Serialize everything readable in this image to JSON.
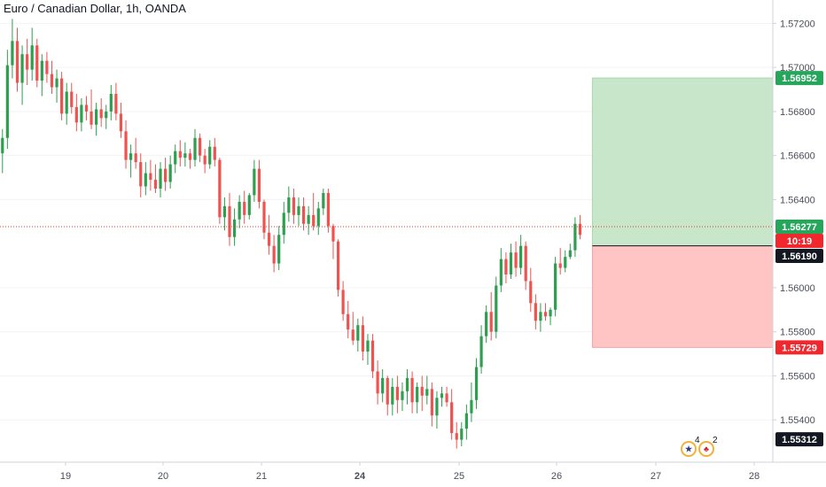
{
  "title": "Euro / Canadian Dollar, 1h, OANDA",
  "colors": {
    "up": "#26a69a",
    "up_body": "#2e9e4f",
    "down": "#ef5350",
    "target_zone": "#c8e6c9",
    "stop_zone": "#ffc4c4",
    "target_badge": "#26a65b",
    "stop_badge": "#f0282d",
    "current_badge": "#26a65b",
    "timer_badge": "#f0282d",
    "entry_badge": "#131722",
    "low_badge": "#131722",
    "price_line": "#e53935"
  },
  "price_axis": {
    "ticks": [
      "1.57200",
      "1.57000",
      "1.56800",
      "1.56600",
      "1.56400",
      "1.56000",
      "1.55800",
      "1.55600",
      "1.55400"
    ]
  },
  "badges": {
    "target": "1.56952",
    "current": "1.56277",
    "timer": "10:19",
    "entry": "1.56190",
    "stop": "1.55729",
    "low": "1.55312"
  },
  "events": {
    "us_count": "4",
    "ca_count": "2",
    "us_icon": "us-flag-icon",
    "ca_icon": "canada-flag-icon"
  },
  "chart_data": {
    "type": "candlestick",
    "title": "Euro / Canadian Dollar, 1h, OANDA",
    "x_axis_labels": [
      "19",
      "20",
      "21",
      "24",
      "25",
      "26",
      "27",
      "28"
    ],
    "y_range": [
      1.5524,
      1.5729
    ],
    "position": {
      "type": "long",
      "entry": 1.5619,
      "target": 1.56952,
      "stop": 1.55729,
      "start_bar": 120,
      "end_bar": 161
    },
    "current_price": 1.56277,
    "ohlc": [
      [
        1.5661,
        1.5672,
        1.5652,
        1.5668
      ],
      [
        1.5668,
        1.5708,
        1.5663,
        1.5701
      ],
      [
        1.5701,
        1.5722,
        1.5695,
        1.5712
      ],
      [
        1.5712,
        1.5718,
        1.5689,
        1.5693
      ],
      [
        1.5693,
        1.571,
        1.5683,
        1.5706
      ],
      [
        1.5706,
        1.5713,
        1.5692,
        1.5699
      ],
      [
        1.5699,
        1.5718,
        1.5694,
        1.571
      ],
      [
        1.571,
        1.5713,
        1.5691,
        1.5694
      ],
      [
        1.5694,
        1.5706,
        1.5687,
        1.5703
      ],
      [
        1.5703,
        1.5707,
        1.5693,
        1.5697
      ],
      [
        1.5697,
        1.5703,
        1.5688,
        1.5691
      ],
      [
        1.5691,
        1.5699,
        1.5684,
        1.5695
      ],
      [
        1.5695,
        1.5698,
        1.5676,
        1.5679
      ],
      [
        1.5679,
        1.5693,
        1.5674,
        1.5689
      ],
      [
        1.5689,
        1.5693,
        1.5679,
        1.5682
      ],
      [
        1.5682,
        1.5688,
        1.5671,
        1.5675
      ],
      [
        1.5675,
        1.5686,
        1.5671,
        1.5683
      ],
      [
        1.5683,
        1.5687,
        1.5676,
        1.568
      ],
      [
        1.568,
        1.569,
        1.5672,
        1.5674
      ],
      [
        1.5674,
        1.5684,
        1.5669,
        1.5681
      ],
      [
        1.5681,
        1.5686,
        1.5673,
        1.5677
      ],
      [
        1.5677,
        1.5683,
        1.5672,
        1.568
      ],
      [
        1.568,
        1.5692,
        1.5676,
        1.5688
      ],
      [
        1.5688,
        1.5693,
        1.5676,
        1.5679
      ],
      [
        1.5679,
        1.5684,
        1.5668,
        1.5671
      ],
      [
        1.5671,
        1.5676,
        1.5654,
        1.5658
      ],
      [
        1.5658,
        1.5665,
        1.565,
        1.5661
      ],
      [
        1.5661,
        1.5668,
        1.5654,
        1.5657
      ],
      [
        1.5657,
        1.5661,
        1.5641,
        1.5646
      ],
      [
        1.5646,
        1.5657,
        1.5642,
        1.5652
      ],
      [
        1.5652,
        1.5658,
        1.5644,
        1.5649
      ],
      [
        1.5649,
        1.5656,
        1.5643,
        1.5645
      ],
      [
        1.5645,
        1.5657,
        1.5641,
        1.5654
      ],
      [
        1.5654,
        1.5659,
        1.5644,
        1.5648
      ],
      [
        1.5648,
        1.566,
        1.5645,
        1.5656
      ],
      [
        1.5656,
        1.5665,
        1.5652,
        1.5662
      ],
      [
        1.5662,
        1.5667,
        1.5655,
        1.5659
      ],
      [
        1.5659,
        1.5666,
        1.5655,
        1.5661
      ],
      [
        1.5661,
        1.5663,
        1.5654,
        1.5658
      ],
      [
        1.5658,
        1.5672,
        1.5655,
        1.5668
      ],
      [
        1.5668,
        1.567,
        1.5657,
        1.566
      ],
      [
        1.566,
        1.5663,
        1.5652,
        1.5656
      ],
      [
        1.5656,
        1.5667,
        1.5654,
        1.5664
      ],
      [
        1.5664,
        1.5668,
        1.5655,
        1.5658
      ],
      [
        1.5658,
        1.5659,
        1.5629,
        1.5632
      ],
      [
        1.5632,
        1.5641,
        1.5626,
        1.5637
      ],
      [
        1.5637,
        1.5643,
        1.5619,
        1.5623
      ],
      [
        1.5623,
        1.5636,
        1.5619,
        1.5631
      ],
      [
        1.5631,
        1.5642,
        1.5627,
        1.5639
      ],
      [
        1.5639,
        1.5644,
        1.5629,
        1.5633
      ],
      [
        1.5633,
        1.5643,
        1.5631,
        1.5642
      ],
      [
        1.5642,
        1.5658,
        1.5639,
        1.5654
      ],
      [
        1.5654,
        1.5658,
        1.5636,
        1.5639
      ],
      [
        1.5639,
        1.564,
        1.5622,
        1.5625
      ],
      [
        1.5625,
        1.5633,
        1.5615,
        1.5619
      ],
      [
        1.5619,
        1.5624,
        1.5607,
        1.5611
      ],
      [
        1.5611,
        1.5628,
        1.5608,
        1.5624
      ],
      [
        1.5624,
        1.5639,
        1.562,
        1.5634
      ],
      [
        1.5634,
        1.5646,
        1.563,
        1.5641
      ],
      [
        1.5641,
        1.5645,
        1.5629,
        1.5633
      ],
      [
        1.5633,
        1.5641,
        1.5628,
        1.5637
      ],
      [
        1.5637,
        1.5641,
        1.5626,
        1.5629
      ],
      [
        1.5629,
        1.5637,
        1.5624,
        1.5633
      ],
      [
        1.5633,
        1.5643,
        1.5626,
        1.5628
      ],
      [
        1.5628,
        1.5639,
        1.5624,
        1.5636
      ],
      [
        1.5636,
        1.5645,
        1.5633,
        1.5643
      ],
      [
        1.5643,
        1.5645,
        1.5625,
        1.5628
      ],
      [
        1.5628,
        1.5629,
        1.5613,
        1.5621
      ],
      [
        1.5621,
        1.5622,
        1.5596,
        1.5599
      ],
      [
        1.5599,
        1.5603,
        1.5585,
        1.5588
      ],
      [
        1.5588,
        1.5594,
        1.5577,
        1.5581
      ],
      [
        1.5581,
        1.5589,
        1.5574,
        1.5576
      ],
      [
        1.5576,
        1.5586,
        1.5571,
        1.5583
      ],
      [
        1.5583,
        1.5587,
        1.5567,
        1.5571
      ],
      [
        1.5571,
        1.5579,
        1.5565,
        1.5576
      ],
      [
        1.5576,
        1.5579,
        1.5559,
        1.5562
      ],
      [
        1.5562,
        1.5567,
        1.5547,
        1.5552
      ],
      [
        1.5552,
        1.5563,
        1.5548,
        1.5559
      ],
      [
        1.5559,
        1.556,
        1.5542,
        1.5547
      ],
      [
        1.5547,
        1.5559,
        1.5542,
        1.5555
      ],
      [
        1.5555,
        1.556,
        1.5543,
        1.5549
      ],
      [
        1.5549,
        1.5557,
        1.5544,
        1.5553
      ],
      [
        1.5553,
        1.5563,
        1.5547,
        1.5559
      ],
      [
        1.5559,
        1.5562,
        1.5543,
        1.5548
      ],
      [
        1.5548,
        1.5557,
        1.5543,
        1.5555
      ],
      [
        1.5555,
        1.556,
        1.5544,
        1.5551
      ],
      [
        1.5551,
        1.556,
        1.5547,
        1.5554
      ],
      [
        1.5554,
        1.5557,
        1.5537,
        1.5542
      ],
      [
        1.5542,
        1.5553,
        1.5536,
        1.555
      ],
      [
        1.555,
        1.5555,
        1.5546,
        1.5552
      ],
      [
        1.5552,
        1.5555,
        1.5546,
        1.5548
      ],
      [
        1.5548,
        1.5554,
        1.5531,
        1.5534
      ],
      [
        1.5534,
        1.5539,
        1.5527,
        1.5531
      ],
      [
        1.5531,
        1.5539,
        1.5528,
        1.5536
      ],
      [
        1.5536,
        1.5547,
        1.5531,
        1.5543
      ],
      [
        1.5543,
        1.5557,
        1.5539,
        1.5549
      ],
      [
        1.5549,
        1.5568,
        1.5545,
        1.5564
      ],
      [
        1.5564,
        1.5583,
        1.5561,
        1.5578
      ],
      [
        1.5578,
        1.5592,
        1.5575,
        1.5589
      ],
      [
        1.5589,
        1.5598,
        1.5576,
        1.558
      ],
      [
        1.558,
        1.5605,
        1.5577,
        1.5601
      ],
      [
        1.5601,
        1.5618,
        1.5598,
        1.5613
      ],
      [
        1.5613,
        1.5616,
        1.5602,
        1.5606
      ],
      [
        1.5606,
        1.562,
        1.5604,
        1.5616
      ],
      [
        1.5616,
        1.5621,
        1.5605,
        1.5609
      ],
      [
        1.5609,
        1.5624,
        1.5606,
        1.5619
      ],
      [
        1.5619,
        1.5621,
        1.5599,
        1.5603
      ],
      [
        1.5603,
        1.5609,
        1.5589,
        1.5593
      ],
      [
        1.5593,
        1.5597,
        1.5581,
        1.5585
      ],
      [
        1.5585,
        1.5593,
        1.558,
        1.5589
      ],
      [
        1.5589,
        1.5593,
        1.5585,
        1.5587
      ],
      [
        1.5587,
        1.5591,
        1.5583,
        1.559
      ],
      [
        1.559,
        1.5614,
        1.5587,
        1.5611
      ],
      [
        1.5611,
        1.5618,
        1.5606,
        1.5609
      ],
      [
        1.5609,
        1.5617,
        1.5607,
        1.5614
      ],
      [
        1.5614,
        1.562,
        1.5613,
        1.5617
      ],
      [
        1.5617,
        1.5632,
        1.5614,
        1.5629
      ],
      [
        1.5629,
        1.5633,
        1.5622,
        1.5624
      ]
    ]
  }
}
